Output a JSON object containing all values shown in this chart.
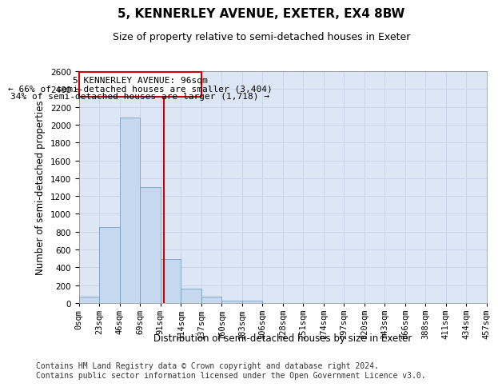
{
  "title": "5, KENNERLEY AVENUE, EXETER, EX4 8BW",
  "subtitle": "Size of property relative to semi-detached houses in Exeter",
  "xlabel": "Distribution of semi-detached houses by size in Exeter",
  "ylabel": "Number of semi-detached properties",
  "footer_line1": "Contains HM Land Registry data © Crown copyright and database right 2024.",
  "footer_line2": "Contains public sector information licensed under the Open Government Licence v3.0.",
  "annotation_line1": "5 KENNERLEY AVENUE: 96sqm",
  "annotation_line2": "← 66% of semi-detached houses are smaller (3,404)",
  "annotation_line3": "34% of semi-detached houses are larger (1,718) →",
  "bin_starts": [
    0,
    23,
    46,
    69,
    92,
    115,
    138,
    161,
    184,
    207,
    230,
    253,
    276,
    299,
    322,
    345,
    368,
    391,
    414,
    437
  ],
  "bin_labels": [
    "0sqm",
    "23sqm",
    "46sqm",
    "69sqm",
    "91sqm",
    "114sqm",
    "137sqm",
    "160sqm",
    "183sqm",
    "206sqm",
    "228sqm",
    "251sqm",
    "274sqm",
    "297sqm",
    "320sqm",
    "343sqm",
    "366sqm",
    "388sqm",
    "411sqm",
    "434sqm",
    "457sqm"
  ],
  "counts": [
    75,
    850,
    2080,
    1300,
    490,
    165,
    75,
    25,
    25,
    0,
    0,
    0,
    0,
    0,
    0,
    0,
    0,
    0,
    0,
    0
  ],
  "bar_color": "#c5d8ed",
  "bar_edge_color": "#6699bb",
  "vline_color": "#cc0000",
  "vline_x": 96,
  "box_color": "#cc0000",
  "ylim": [
    0,
    2600
  ],
  "yticks": [
    0,
    200,
    400,
    600,
    800,
    1000,
    1200,
    1400,
    1600,
    1800,
    2000,
    2200,
    2400,
    2600
  ],
  "grid_color": "#c8d4e8",
  "background_color": "#dce6f5",
  "title_fontsize": 11,
  "subtitle_fontsize": 9,
  "axis_label_fontsize": 8.5,
  "tick_fontsize": 7.5,
  "annotation_fontsize": 8,
  "footer_fontsize": 7
}
